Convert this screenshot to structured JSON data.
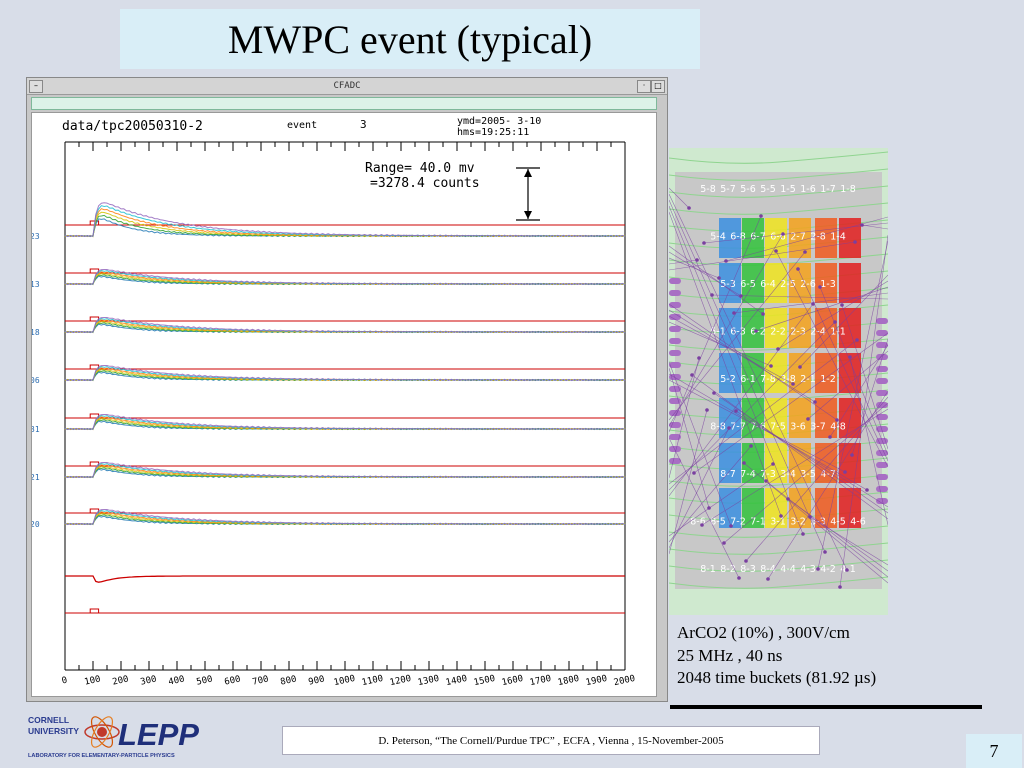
{
  "slide": {
    "title": "MWPC event (typical)",
    "page_number": "7",
    "citation": "D. Peterson,  “The Cornell/Purdue TPC” ,  ECFA , Vienna , 15-November-2005"
  },
  "scope": {
    "window_title": "CFADC",
    "datafile": "data/tpc20050310-2",
    "event_label": "event",
    "event_number": "3",
    "ymd": "ymd=2005- 3-10",
    "hms": "hms=19:25:11",
    "range_line1": "Range=  40.0 mv",
    "range_line2": "=3278.4 counts",
    "row_labels": [
      "23",
      "13",
      "18",
      "06",
      "31",
      "21",
      "20"
    ],
    "x_ticks": [
      "0",
      "100",
      "200",
      "300",
      "400",
      "500",
      "600",
      "700",
      "800",
      "900",
      "1000",
      "1100",
      "1200",
      "1300",
      "1400",
      "1500",
      "1600",
      "1700",
      "1800",
      "1900",
      "2000"
    ]
  },
  "pad_grid": {
    "rows": [
      [
        "5-8",
        "5-7",
        "5-6",
        "5-5",
        "1-5",
        "1-6",
        "1-7",
        "1-8"
      ],
      [
        "5-4",
        "6-8",
        "6-7",
        "6-6",
        "2-7",
        "2-8",
        "1-4"
      ],
      [
        "5-3",
        "6-5",
        "6-4",
        "2-5",
        "2-6",
        "1-3"
      ],
      [
        "5-1",
        "6-3",
        "6-2",
        "2-2",
        "2-3",
        "2-4",
        "1-1"
      ],
      [
        "5-2",
        "6-1",
        "7-8",
        "3-8",
        "2-1",
        "1-2"
      ],
      [
        "8-8",
        "7-7",
        "7-6",
        "7-5",
        "3-6",
        "3-7",
        "4-8"
      ],
      [
        "8-7",
        "7-4",
        "7-3",
        "3-4",
        "3-5",
        "4-7"
      ],
      [
        "8-6",
        "8-5",
        "7-2",
        "7-1",
        "3-1",
        "3-2",
        "3-3",
        "4-5",
        "4-6"
      ],
      [
        "8-1",
        "8-2",
        "8-3",
        "8-4",
        "4-4",
        "4-3",
        "4-2",
        "4-1"
      ]
    ]
  },
  "specs": {
    "line1": "ArCO2 (10%) , 300V/cm",
    "line2": "25 MHz , 40 ns",
    "line3": "2048 time buckets  (81.92 µs)"
  },
  "logo": {
    "cornell_line1": "CORNELL",
    "cornell_line2": "UNIVERSITY",
    "lepp": "LEPP",
    "tagline": "LABORATORY FOR ELEMENTARY-PARTICLE PHYSICS"
  }
}
